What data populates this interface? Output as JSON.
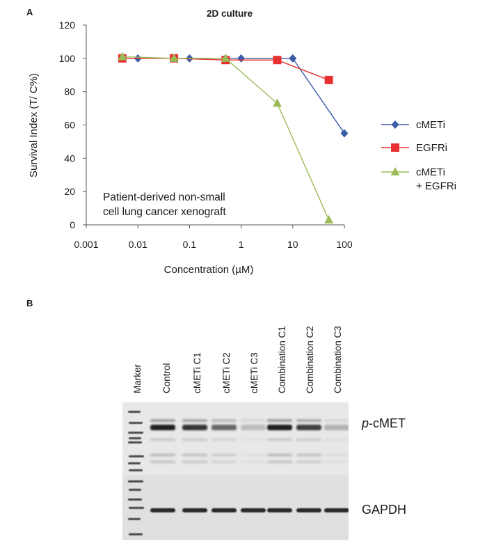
{
  "panel_a_label": "A",
  "panel_b_label": "B",
  "chart_data": {
    "type": "line",
    "title": "2D culture",
    "xlabel": "Concentration (µM)",
    "ylabel": "Survival Index (T/ C%)",
    "xscale": "log",
    "xlim": [
      0.001,
      100
    ],
    "ylim": [
      0,
      120
    ],
    "xticks": [
      "0.001",
      "0.01",
      "0.1",
      "1",
      "10",
      "100"
    ],
    "yticks": [
      "0",
      "20",
      "40",
      "60",
      "80",
      "100",
      "120"
    ],
    "annotation": [
      "Patient-derived non-small",
      "cell lung cancer xenograft"
    ],
    "legend_position": "right",
    "series": [
      {
        "name": "cMETi",
        "color": "#3b5ca8",
        "marker": "diamond",
        "x": [
          0.005,
          0.01,
          0.05,
          0.1,
          0.5,
          1,
          10,
          100
        ],
        "y": [
          100,
          100,
          100,
          100,
          100,
          100,
          100,
          55
        ]
      },
      {
        "name": "EGFRi",
        "color": "#e63030",
        "marker": "square",
        "x": [
          0.005,
          0.05,
          0.5,
          5,
          50
        ],
        "y": [
          100,
          100,
          99,
          99,
          87
        ]
      },
      {
        "name": "cMETi\n+ EGFRi",
        "color": "#9bbb59",
        "marker": "triangle",
        "x": [
          0.005,
          0.05,
          0.5,
          5,
          50
        ],
        "y": [
          101,
          100,
          100,
          73,
          3
        ]
      }
    ]
  },
  "blot": {
    "lanes": [
      "Marker",
      "Control",
      "cMETi C1",
      "cMETi C2",
      "cMETi C3",
      "Combination C1",
      "Combination C2",
      "Combination C3"
    ],
    "target_label_italic": "p",
    "target_label_rest": "-cMET",
    "loading_label": "GAPDH"
  }
}
